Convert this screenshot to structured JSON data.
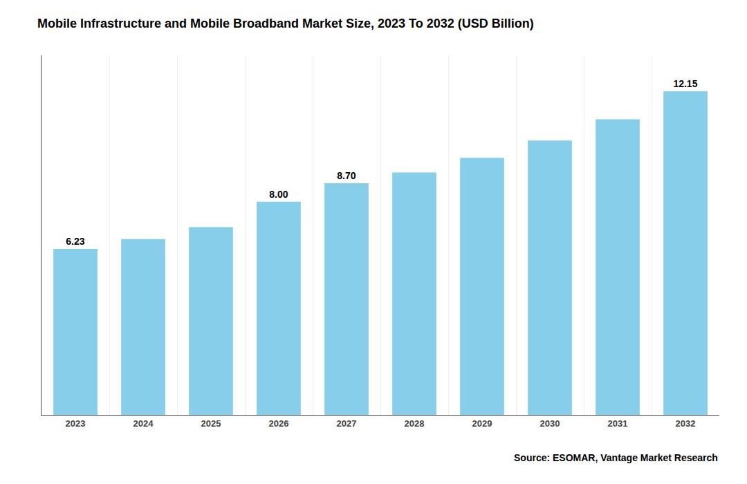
{
  "chart_data": {
    "type": "bar",
    "title": "Mobile Infrastructure and Mobile Broadband Market Size, 2023 To 2032 (USD Billion)",
    "categories": [
      "2023",
      "2024",
      "2025",
      "2026",
      "2027",
      "2028",
      "2029",
      "2030",
      "2031",
      "2032"
    ],
    "values": [
      6.23,
      6.6,
      7.05,
      8.0,
      8.7,
      9.1,
      9.65,
      10.3,
      11.1,
      12.15
    ],
    "value_labels": [
      "6.23",
      null,
      null,
      "8.00",
      "8.70",
      null,
      null,
      null,
      null,
      "12.15"
    ],
    "data_labels": true,
    "color": "#87CEEB",
    "ylim": [
      0,
      13.5
    ],
    "tick_labels": "x",
    "grid": true,
    "annotations": [
      "Source: ESOMAR, Vantage Market Research"
    ]
  }
}
